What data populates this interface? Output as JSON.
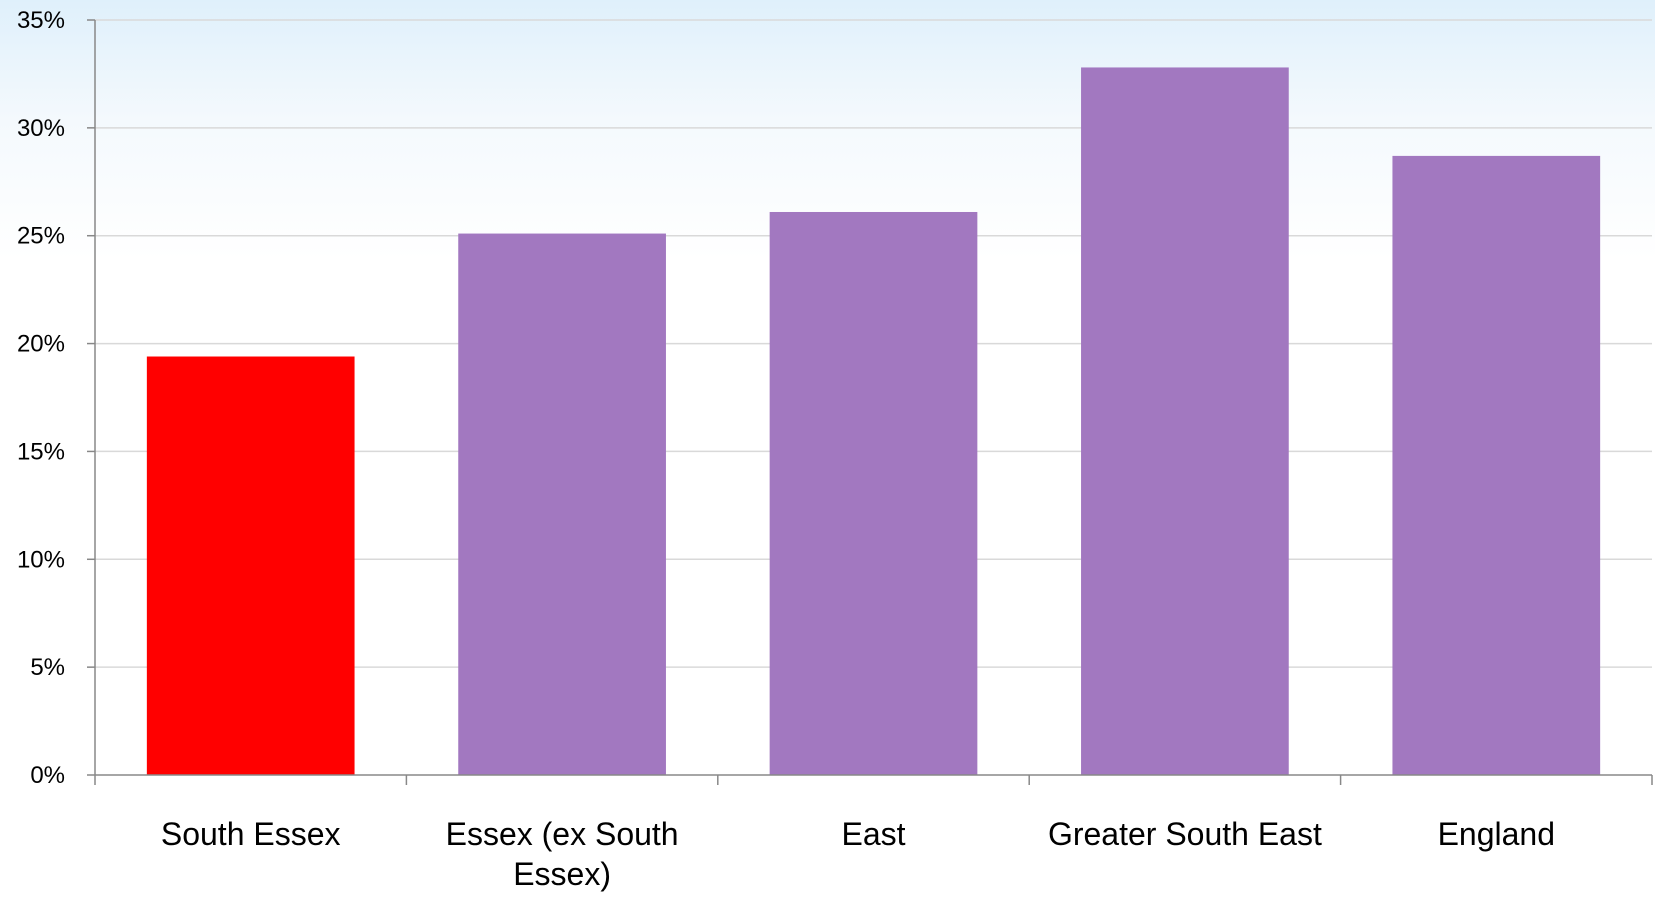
{
  "chart_data": {
    "type": "bar",
    "title": "",
    "xlabel": "",
    "ylabel": "",
    "categories": [
      [
        "South Essex"
      ],
      [
        "Essex (ex South",
        "Essex)"
      ],
      [
        "East"
      ],
      [
        "Greater South East"
      ],
      [
        "England"
      ]
    ],
    "values": [
      19.4,
      25.1,
      26.1,
      32.8,
      28.7
    ],
    "colors": [
      "#ff0000",
      "#a278c0",
      "#a278c0",
      "#a278c0",
      "#a278c0"
    ],
    "ylim": [
      0,
      35
    ],
    "yticks": [
      0,
      5,
      10,
      15,
      20,
      25,
      30,
      35
    ],
    "ytick_labels": [
      "0%",
      "5%",
      "10%",
      "15%",
      "20%",
      "25%",
      "30%",
      "35%"
    ],
    "grid": true,
    "legend": "none"
  }
}
